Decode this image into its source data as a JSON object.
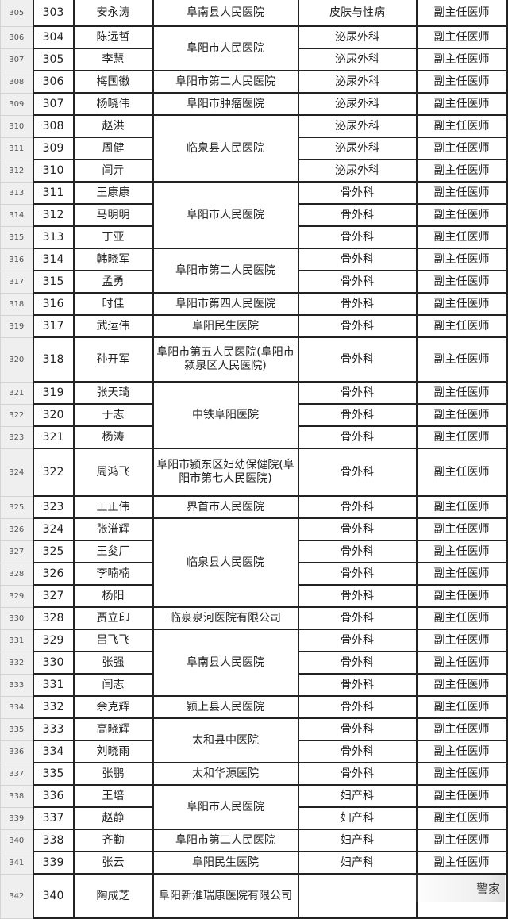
{
  "rows": [
    {
      "r": "305",
      "no": "303",
      "name": "安永涛",
      "hospital": "阜南县人民医院",
      "span": 1,
      "dept": "皮肤与性病",
      "title": "副主任医师"
    },
    {
      "r": "306",
      "no": "304",
      "name": "陈远哲",
      "hospital": "阜阳市人民医院",
      "span": 2,
      "dept": "泌尿外科",
      "title": "副主任医师"
    },
    {
      "r": "307",
      "no": "305",
      "name": "李慧",
      "dept": "泌尿外科",
      "title": "副主任医师"
    },
    {
      "r": "308",
      "no": "306",
      "name": "梅国徽",
      "hospital": "阜阳市第二人民医院",
      "span": 1,
      "dept": "泌尿外科",
      "title": "副主任医师"
    },
    {
      "r": "309",
      "no": "307",
      "name": "杨晓伟",
      "hospital": "阜阳市肿瘤医院",
      "span": 1,
      "dept": "泌尿外科",
      "title": "副主任医师"
    },
    {
      "r": "310",
      "no": "308",
      "name": "赵洪",
      "hospital": "临泉县人民医院",
      "span": 3,
      "dept": "泌尿外科",
      "title": "副主任医师"
    },
    {
      "r": "311",
      "no": "309",
      "name": "周健",
      "dept": "泌尿外科",
      "title": "副主任医师"
    },
    {
      "r": "312",
      "no": "310",
      "name": "闫亓",
      "dept": "泌尿外科",
      "title": "副主任医师"
    },
    {
      "r": "313",
      "no": "311",
      "name": "王康康",
      "hospital": "阜阳市人民医院",
      "span": 3,
      "dept": "骨外科",
      "title": "副主任医师"
    },
    {
      "r": "314",
      "no": "312",
      "name": "马明明",
      "dept": "骨外科",
      "title": "副主任医师"
    },
    {
      "r": "315",
      "no": "313",
      "name": "丁亚",
      "dept": "骨外科",
      "title": "副主任医师"
    },
    {
      "r": "316",
      "no": "314",
      "name": "韩晓军",
      "hospital": "阜阳市第二人民医院",
      "span": 2,
      "dept": "骨外科",
      "title": "副主任医师"
    },
    {
      "r": "317",
      "no": "315",
      "name": "孟勇",
      "dept": "骨外科",
      "title": "副主任医师"
    },
    {
      "r": "318",
      "no": "316",
      "name": "时佳",
      "hospital": "阜阳市第四人民医院",
      "span": 1,
      "dept": "骨外科",
      "title": "副主任医师"
    },
    {
      "r": "319",
      "no": "317",
      "name": "武运伟",
      "hospital": "阜阳民生医院",
      "span": 1,
      "dept": "骨外科",
      "title": "副主任医师"
    },
    {
      "r": "320",
      "no": "318",
      "name": "孙开军",
      "hospital": "阜阳市第五人民医院(阜阳市颍泉区人民医院)",
      "span": 1,
      "dept": "骨外科",
      "title": "副主任医师",
      "h": 56
    },
    {
      "r": "321",
      "no": "319",
      "name": "张天琦",
      "hospital": "中铁阜阳医院",
      "span": 3,
      "dept": "骨外科",
      "title": "副主任医师"
    },
    {
      "r": "322",
      "no": "320",
      "name": "于志",
      "dept": "骨外科",
      "title": "副主任医师"
    },
    {
      "r": "323",
      "no": "321",
      "name": "杨涛",
      "dept": "骨外科",
      "title": "副主任医师"
    },
    {
      "r": "324",
      "no": "322",
      "name": "周鸿飞",
      "hospital": "阜阳市颍东区妇幼保健院(阜阳市第七人民医院)",
      "span": 1,
      "dept": "骨外科",
      "title": "副主任医师",
      "h": 60
    },
    {
      "r": "325",
      "no": "323",
      "name": "王正伟",
      "hospital": "界首市人民医院",
      "span": 1,
      "dept": "骨外科",
      "title": "副主任医师"
    },
    {
      "r": "326",
      "no": "324",
      "name": "张潽辉",
      "hospital": "临泉县人民医院",
      "span": 4,
      "dept": "骨外科",
      "title": "副主任医师"
    },
    {
      "r": "327",
      "no": "325",
      "name": "王夋厂",
      "dept": "骨外科",
      "title": "副主任医师"
    },
    {
      "r": "328",
      "no": "326",
      "name": "李喃楠",
      "dept": "骨外科",
      "title": "副主任医师"
    },
    {
      "r": "329",
      "no": "327",
      "name": "杨阳",
      "dept": "骨外科",
      "title": "副主任医师"
    },
    {
      "r": "330",
      "no": "328",
      "name": "贾立印",
      "hospital": "临泉泉河医院有限公司",
      "span": 1,
      "dept": "骨外科",
      "title": "副主任医师"
    },
    {
      "r": "331",
      "no": "329",
      "name": "吕飞飞",
      "hospital": "阜南县人民医院",
      "span": 3,
      "dept": "骨外科",
      "title": "副主任医师"
    },
    {
      "r": "332",
      "no": "330",
      "name": "张强",
      "dept": "骨外科",
      "title": "副主任医师"
    },
    {
      "r": "333",
      "no": "331",
      "name": "闫志",
      "dept": "骨外科",
      "title": "副主任医师"
    },
    {
      "r": "334",
      "no": "332",
      "name": "余克辉",
      "hospital": "颍上县人民医院",
      "span": 1,
      "dept": "骨外科",
      "title": "副主任医师"
    },
    {
      "r": "335",
      "no": "333",
      "name": "高晓辉",
      "hospital": "太和县中医院",
      "span": 2,
      "dept": "骨外科",
      "title": "副主任医师"
    },
    {
      "r": "336",
      "no": "334",
      "name": "刘晓雨",
      "dept": "骨外科",
      "title": "副主任医师"
    },
    {
      "r": "337",
      "no": "335",
      "name": "张鹏",
      "hospital": "太和华源医院",
      "span": 1,
      "dept": "骨外科",
      "title": "副主任医师"
    },
    {
      "r": "338",
      "no": "336",
      "name": "王培",
      "hospital": "阜阳市人民医院",
      "span": 2,
      "dept": "妇产科",
      "title": "副主任医师"
    },
    {
      "r": "339",
      "no": "337",
      "name": "赵静",
      "dept": "妇产科",
      "title": "副主任医师"
    },
    {
      "r": "340",
      "no": "338",
      "name": "齐勤",
      "hospital": "阜阳市第二人民医院",
      "span": 1,
      "dept": "妇产科",
      "title": "副主任医师"
    },
    {
      "r": "341",
      "no": "339",
      "name": "张云",
      "hospital": "阜阳民生医院",
      "span": 1,
      "dept": "妇产科",
      "title": "副主任医师"
    },
    {
      "r": "342",
      "no": "340",
      "name": "陶成芝",
      "hospital": "阜阳新淮瑞康医院有限公司",
      "span": 1,
      "dept": "",
      "title": "",
      "h": 56
    }
  ],
  "watermark": "警家"
}
